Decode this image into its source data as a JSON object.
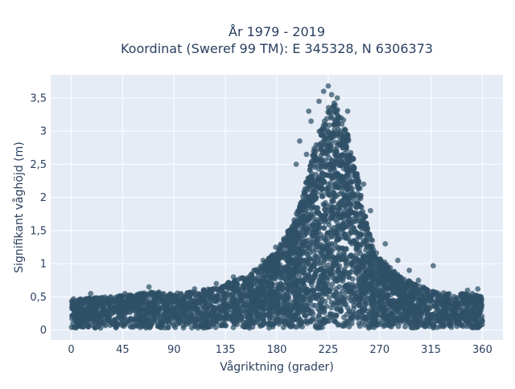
{
  "chart_data": {
    "type": "scatter",
    "title_line1": "År 1979 - 2019",
    "title_line2": "Koordinat (Sweref 99 TM): E 345328, N 6306373",
    "xlabel": "Vågriktning (grader)",
    "ylabel": "Signifikant våghöjd (m)",
    "xlim": [
      -18,
      378
    ],
    "ylim": [
      -0.15,
      3.85
    ],
    "xticks": [
      0,
      45,
      90,
      135,
      180,
      225,
      270,
      315,
      360
    ],
    "xtick_labels": [
      "0",
      "45",
      "90",
      "135",
      "180",
      "225",
      "270",
      "315",
      "360"
    ],
    "yticks": [
      0,
      0.5,
      1,
      1.5,
      2,
      2.5,
      3,
      3.5
    ],
    "ytick_labels": [
      "0",
      "0,5",
      "1",
      "1,5",
      "2",
      "2,5",
      "3",
      "3,5"
    ],
    "grid": true,
    "colors": {
      "plot_background": "#e5ecf6",
      "marker": "#2f5066",
      "gridline": "#ffffff",
      "text": "#2a3f5f"
    },
    "envelope": {
      "direction": [
        0,
        15,
        30,
        45,
        60,
        75,
        90,
        105,
        120,
        135,
        150,
        165,
        180,
        195,
        205,
        215,
        225,
        232,
        240,
        250,
        260,
        270,
        285,
        300,
        315,
        330,
        345,
        360
      ],
      "upper_hs": [
        0.45,
        0.48,
        0.5,
        0.52,
        0.55,
        0.58,
        0.55,
        0.58,
        0.62,
        0.7,
        0.8,
        0.95,
        1.2,
        1.65,
        2.2,
        2.9,
        3.4,
        3.45,
        3.1,
        2.4,
        1.5,
        1.1,
        0.85,
        0.7,
        0.6,
        0.55,
        0.55,
        0.55
      ],
      "lower_hs": 0.03
    },
    "outliers": [
      {
        "x": 68,
        "y": 0.65
      },
      {
        "x": 221,
        "y": 3.6
      },
      {
        "x": 225,
        "y": 3.68
      },
      {
        "x": 228,
        "y": 3.55
      },
      {
        "x": 217,
        "y": 3.45
      },
      {
        "x": 233,
        "y": 3.5
      },
      {
        "x": 242,
        "y": 3.3
      },
      {
        "x": 208,
        "y": 3.3
      },
      {
        "x": 210,
        "y": 3.15
      },
      {
        "x": 200,
        "y": 2.85
      },
      {
        "x": 197,
        "y": 2.5
      },
      {
        "x": 206,
        "y": 2.65
      },
      {
        "x": 256,
        "y": 2.2
      },
      {
        "x": 262,
        "y": 1.8
      },
      {
        "x": 275,
        "y": 1.3
      },
      {
        "x": 286,
        "y": 1.05
      },
      {
        "x": 296,
        "y": 0.9
      },
      {
        "x": 304,
        "y": 0.75
      },
      {
        "x": 317,
        "y": 0.97
      },
      {
        "x": 179,
        "y": 1.25
      },
      {
        "x": 168,
        "y": 1.05
      },
      {
        "x": 160,
        "y": 0.9
      },
      {
        "x": 142,
        "y": 0.8
      },
      {
        "x": 127,
        "y": 0.7
      },
      {
        "x": 17,
        "y": 0.55
      },
      {
        "x": 47,
        "y": 0.55
      },
      {
        "x": 108,
        "y": 0.62
      },
      {
        "x": 347,
        "y": 0.6
      },
      {
        "x": 356,
        "y": 0.62
      },
      {
        "x": 2,
        "y": 0.47
      }
    ]
  }
}
